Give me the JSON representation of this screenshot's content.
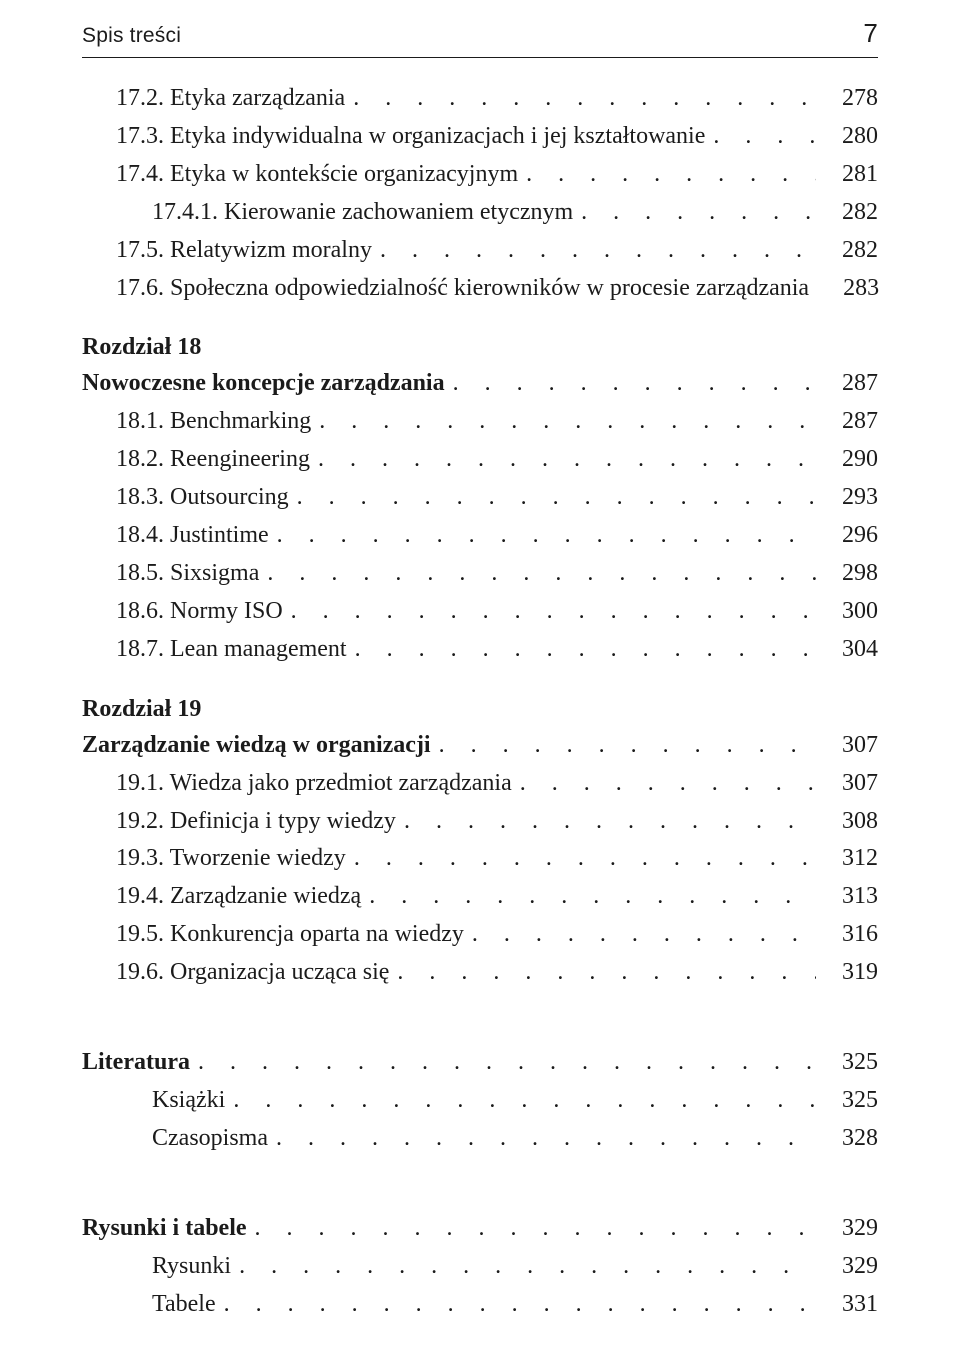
{
  "header": {
    "running_head_left": "Spis treści",
    "running_head_right": "7"
  },
  "leader_dots": ". . . . . . . . . . . . . . . . . . . . . . . . . . . . . . . . . . . . . . . . . . . . . . . . . . . . . . . . . . . .",
  "blocks": [
    {
      "type": "entries",
      "items": [
        {
          "label": "17.2. Etyka zarządzania",
          "page": "278",
          "indent": 1
        },
        {
          "label": "17.3. Etyka indywidualna w organizacjach i jej kształtowanie",
          "page": "280",
          "indent": 1
        },
        {
          "label": "17.4. Etyka w kontekście organizacyjnym",
          "page": "281",
          "indent": 1
        },
        {
          "label": "17.4.1. Kierowanie zachowaniem etycznym",
          "page": "282",
          "indent": 2
        },
        {
          "label": "17.5. Relatywizm moralny",
          "page": "282",
          "indent": 1
        },
        {
          "label": "17.6. Społeczna odpowiedzialność kierowników w procesie zarządzania",
          "page": "283",
          "indent": 1
        }
      ]
    },
    {
      "type": "chapter",
      "heading": "Rozdział 18",
      "title": {
        "label": "Nowoczesne koncepcje zarządzania",
        "page": "287"
      },
      "items": [
        {
          "label": "18.1. Benchmarking",
          "page": "287",
          "indent": 1
        },
        {
          "label": "18.2. Reengineering",
          "page": "290",
          "indent": 1
        },
        {
          "label": "18.3. Outsourcing",
          "page": "293",
          "indent": 1
        },
        {
          "label": "18.4. Justintime",
          "page": "296",
          "indent": 1
        },
        {
          "label": "18.5. Sixsigma",
          "page": "298",
          "indent": 1
        },
        {
          "label": "18.6. Normy ISO",
          "page": "300",
          "indent": 1
        },
        {
          "label": "18.7. Lean management",
          "page": "304",
          "indent": 1
        }
      ]
    },
    {
      "type": "chapter",
      "heading": "Rozdział 19",
      "title": {
        "label": "Zarządzanie wiedzą w organizacji",
        "page": "307"
      },
      "items": [
        {
          "label": "19.1. Wiedza jako przedmiot zarządzania",
          "page": "307",
          "indent": 1
        },
        {
          "label": "19.2. Definicja i typy wiedzy",
          "page": "308",
          "indent": 1
        },
        {
          "label": "19.3. Tworzenie wiedzy",
          "page": "312",
          "indent": 1
        },
        {
          "label": "19.4. Zarządzanie wiedzą",
          "page": "313",
          "indent": 1
        },
        {
          "label": "19.5. Konkurencja oparta na wiedzy",
          "page": "316",
          "indent": 1
        },
        {
          "label": "19.6. Organizacja ucząca się",
          "page": "319",
          "indent": 1
        }
      ]
    },
    {
      "type": "section",
      "title": {
        "label": "Literatura",
        "page": "325"
      },
      "items": [
        {
          "label": "Książki",
          "page": "325",
          "indent": 2
        },
        {
          "label": "Czasopisma",
          "page": "328",
          "indent": 2
        }
      ],
      "extra_gap_before": true
    },
    {
      "type": "section",
      "title": {
        "label": "Rysunki i tabele",
        "page": "329"
      },
      "items": [
        {
          "label": "Rysunki",
          "page": "329",
          "indent": 2
        },
        {
          "label": "Tabele",
          "page": "331",
          "indent": 2
        }
      ],
      "extra_gap_before": true
    }
  ]
}
